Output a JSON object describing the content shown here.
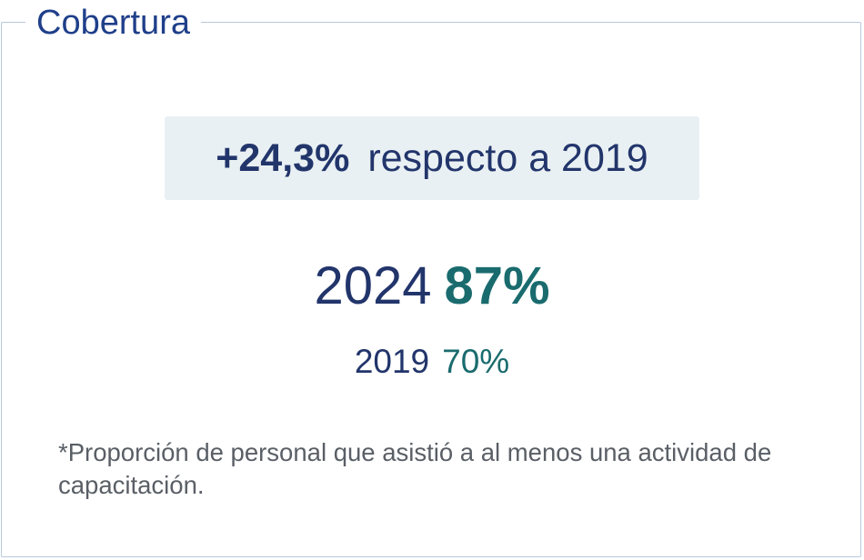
{
  "card": {
    "title": "Cobertura"
  },
  "delta": {
    "value": "+24,3%",
    "label": "respecto a 2019"
  },
  "current": {
    "year": "2024",
    "percent": "87%"
  },
  "previous": {
    "year": "2019",
    "percent": "70%"
  },
  "footnote": "*Proporción de personal que asistió a al menos una actividad de capacitación.",
  "colors": {
    "title": "#1f3f8a",
    "navy": "#22356b",
    "teal": "#1a6b6e",
    "delta_bg": "#e9f0f3",
    "border": "#b9c9dc",
    "footnote": "#5a5f66"
  }
}
